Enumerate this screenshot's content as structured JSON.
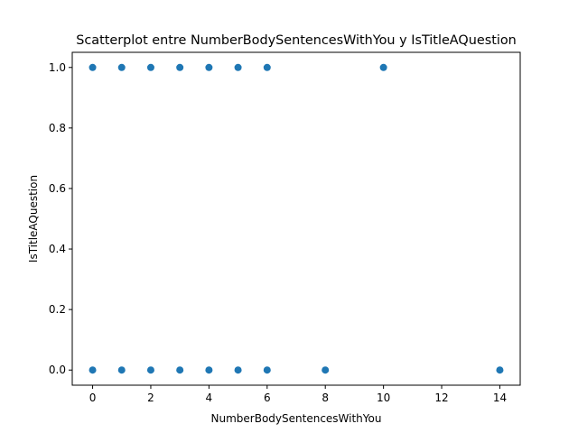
{
  "chart_data": {
    "type": "scatter",
    "title": "Scatterplot entre NumberBodySentencesWithYou y IsTitleAQuestion",
    "xlabel": "NumberBodySentencesWithYou",
    "ylabel": "IsTitleAQuestion",
    "xlim": [
      -0.7,
      14.7
    ],
    "ylim": [
      -0.05,
      1.05
    ],
    "xticks": [
      0,
      2,
      4,
      6,
      8,
      10,
      12,
      14
    ],
    "yticks": [
      0.0,
      0.2,
      0.4,
      0.6,
      0.8,
      1.0
    ],
    "ytick_labels": [
      "0.0",
      "0.2",
      "0.4",
      "0.6",
      "0.8",
      "1.0"
    ],
    "grid": false,
    "marker_color": "#1f77b4",
    "points": [
      {
        "x": 0,
        "y": 1
      },
      {
        "x": 1,
        "y": 1
      },
      {
        "x": 2,
        "y": 1
      },
      {
        "x": 3,
        "y": 1
      },
      {
        "x": 4,
        "y": 1
      },
      {
        "x": 5,
        "y": 1
      },
      {
        "x": 6,
        "y": 1
      },
      {
        "x": 10,
        "y": 1
      },
      {
        "x": 0,
        "y": 0
      },
      {
        "x": 1,
        "y": 0
      },
      {
        "x": 2,
        "y": 0
      },
      {
        "x": 3,
        "y": 0
      },
      {
        "x": 4,
        "y": 0
      },
      {
        "x": 5,
        "y": 0
      },
      {
        "x": 6,
        "y": 0
      },
      {
        "x": 8,
        "y": 0
      },
      {
        "x": 14,
        "y": 0
      }
    ]
  }
}
